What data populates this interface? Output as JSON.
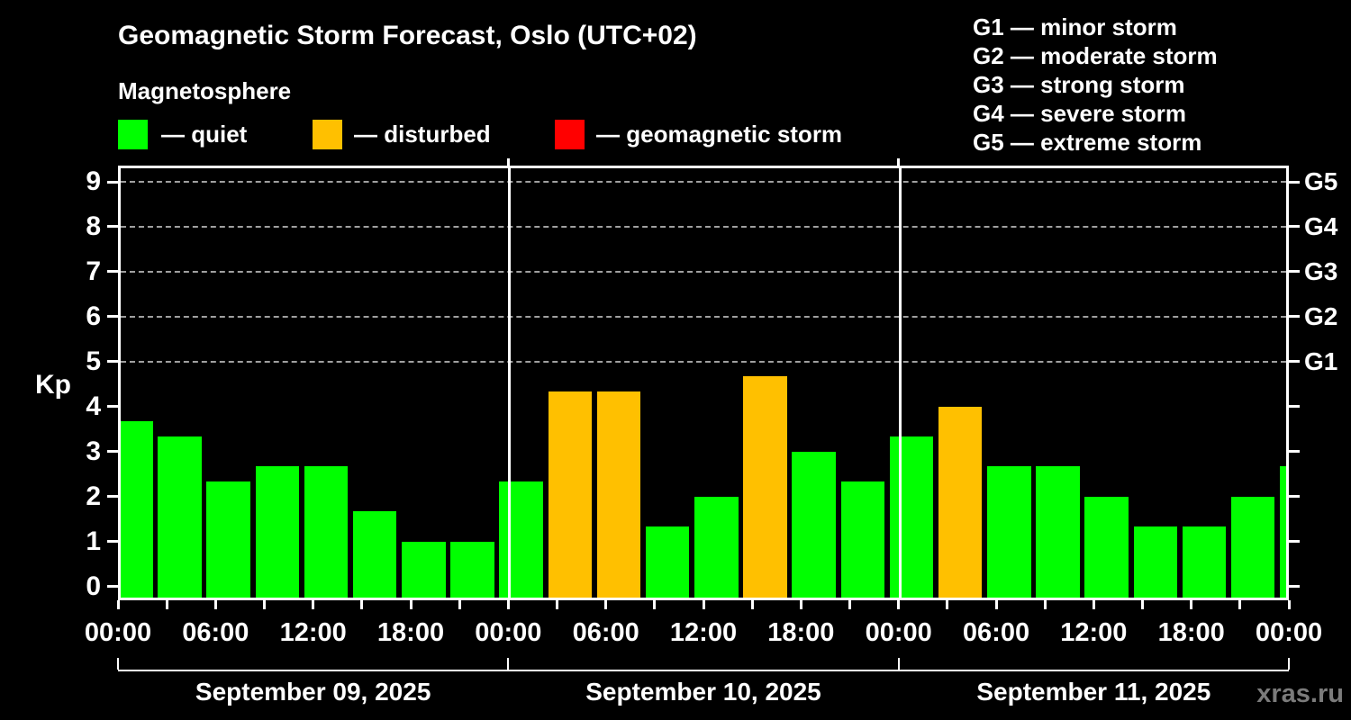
{
  "title": "Geomagnetic Storm Forecast, Oslo (UTC+02)",
  "subtitle": "Magnetosphere",
  "legend": {
    "items": [
      {
        "status": "quiet",
        "label": "— quiet",
        "color": "#00ff00"
      },
      {
        "status": "disturbed",
        "label": "— disturbed",
        "color": "#ffc000"
      },
      {
        "status": "geomagnetic storm",
        "label": "— geomagnetic storm",
        "color": "#ff0000"
      }
    ]
  },
  "g_scale_legend": [
    "G1 — minor storm",
    "G2 — moderate storm",
    "G3 — strong storm",
    "G4 — severe storm",
    "G5 — extreme storm"
  ],
  "watermark": "xras.ru",
  "chart_data": {
    "type": "bar",
    "title": "Geomagnetic Storm Forecast, Oslo (UTC+02)",
    "xlabel": "",
    "ylabel": "Kp",
    "ylim": [
      -0.25,
      9.35
    ],
    "yticks": [
      0,
      1,
      2,
      3,
      4,
      5,
      6,
      7,
      8,
      9
    ],
    "gridlines_at": [
      5,
      6,
      7,
      8,
      9
    ],
    "grid": "dashed, only at G-storm levels 5-9",
    "right_axis": [
      {
        "label": "G1",
        "kp": 5
      },
      {
        "label": "G2",
        "kp": 6
      },
      {
        "label": "G3",
        "kp": 7
      },
      {
        "label": "G4",
        "kp": 8
      },
      {
        "label": "G5",
        "kp": 9
      }
    ],
    "bin_hours": 3,
    "x_tick_labels": [
      "00:00",
      "06:00",
      "12:00",
      "18:00",
      "00:00",
      "06:00",
      "12:00",
      "18:00",
      "00:00",
      "06:00",
      "12:00",
      "18:00",
      "00:00"
    ],
    "days": [
      {
        "date": "September 09, 2025",
        "values": [
          3.67,
          3.33,
          2.33,
          2.67,
          2.67,
          1.67,
          1.0,
          1.0
        ]
      },
      {
        "date": "September 10, 2025",
        "values": [
          2.33,
          4.33,
          4.33,
          1.33,
          2.0,
          4.67,
          3.0,
          2.33
        ]
      },
      {
        "date": "September 11, 2025",
        "values": [
          3.33,
          4.0,
          2.67,
          2.67,
          2.0,
          1.33,
          1.33,
          2.0
        ]
      }
    ],
    "next_day_partial_value": 2.67,
    "color_rules": [
      {
        "below": 4,
        "color": "#00ff00",
        "status": "quiet"
      },
      {
        "below": 5,
        "color": "#ffc000",
        "status": "disturbed"
      },
      {
        "below": 10,
        "color": "#ff0000",
        "status": "geomagnetic storm"
      }
    ],
    "legend_position": "top-left above plot; G-scale legend top-right"
  }
}
